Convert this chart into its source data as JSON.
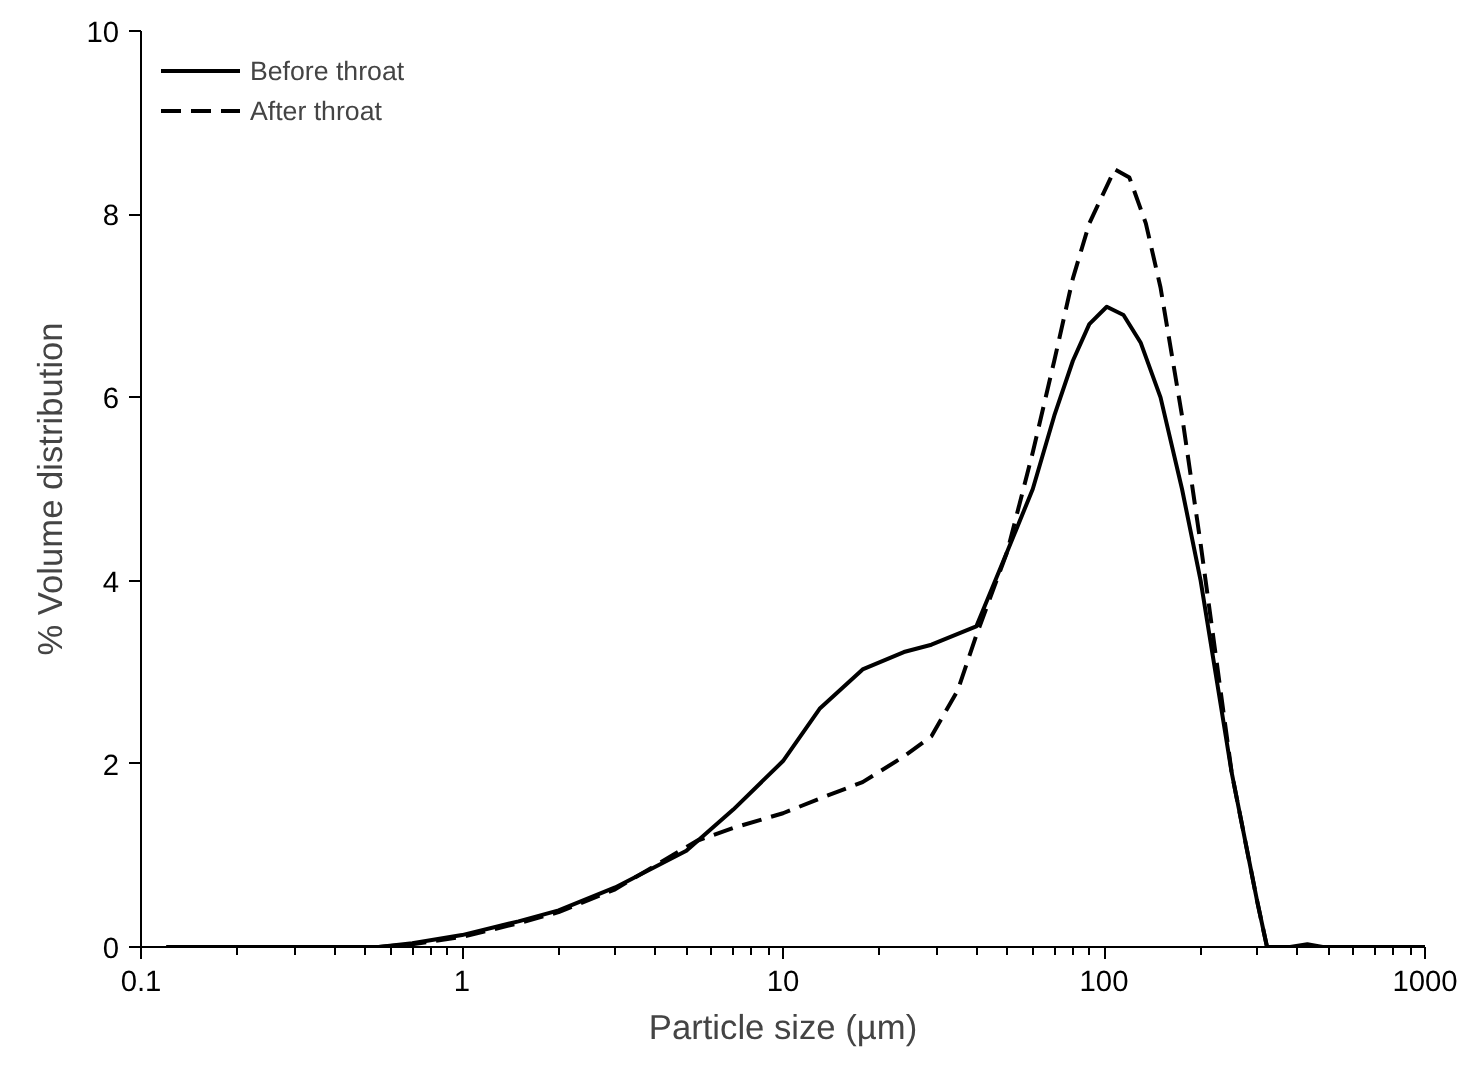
{
  "chart_data": {
    "type": "line",
    "xlabel": "Particle size (µm)",
    "ylabel": "% Volume distribution",
    "log": "x",
    "xlim": [
      0.1,
      1000
    ],
    "xticks": [
      0.1,
      1,
      10,
      100,
      1000
    ],
    "ylim": [
      0,
      10
    ],
    "yticks": [
      0,
      2,
      4,
      6,
      8,
      10
    ],
    "grid": false,
    "legend": "top left",
    "marker": "none",
    "series": [
      {
        "name": "Before throat",
        "color": "#000000",
        "line_style": "solid",
        "x": [
          0.12,
          0.55,
          0.7,
          1,
          1.5,
          2,
          3,
          5,
          7,
          10,
          13,
          17.7,
          23.8,
          29,
          40,
          50,
          60,
          70,
          80,
          90,
          102,
          115,
          130,
          150,
          175,
          200,
          250,
          300,
          322,
          380,
          430,
          480,
          1000
        ],
        "values": [
          0,
          0,
          0.04,
          0.13,
          0.28,
          0.4,
          0.65,
          1.05,
          1.5,
          2.03,
          2.6,
          3.03,
          3.22,
          3.3,
          3.5,
          4.32,
          5.0,
          5.8,
          6.4,
          6.8,
          6.99,
          6.9,
          6.6,
          6.0,
          5.0,
          4.0,
          1.9,
          0.5,
          0,
          0,
          0.03,
          0,
          0
        ]
      },
      {
        "name": "After throat",
        "color": "#000000",
        "line_style": "dashed",
        "x": [
          0.12,
          0.55,
          0.7,
          1,
          1.5,
          2,
          3,
          5.4,
          7,
          10,
          13,
          17.7,
          23.8,
          29,
          35,
          40,
          50,
          60,
          70,
          80,
          90,
          108,
          120,
          135,
          150,
          175,
          200,
          250,
          300,
          322,
          1000
        ],
        "values": [
          0,
          0,
          0.03,
          0.11,
          0.26,
          0.38,
          0.63,
          1.16,
          1.3,
          1.46,
          1.62,
          1.8,
          2.08,
          2.3,
          2.8,
          3.4,
          4.32,
          5.4,
          6.4,
          7.3,
          7.9,
          8.49,
          8.4,
          7.9,
          7.2,
          5.8,
          4.4,
          1.9,
          0.5,
          0,
          0
        ]
      }
    ]
  }
}
